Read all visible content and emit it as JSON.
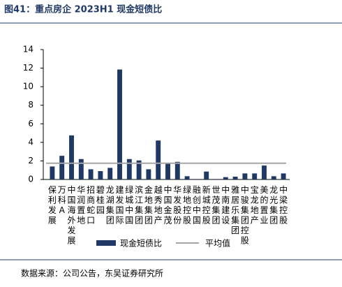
{
  "chart_data": {
    "type": "bar",
    "title": "图41：重点房企 2023H1 现金短债比",
    "source": "数据来源：公司公告，东吴证券研究所",
    "categories": [
      "保利发展",
      "万科A",
      "中国海外发展",
      "华润置地",
      "招商蛇口",
      "碧桂园",
      "龙湖集团",
      "建发国际",
      "绿城中国",
      "滨江集团",
      "金地集团",
      "越秀地产",
      "中国金茂",
      "华发股份",
      "绿地控股",
      "融创中国",
      "新城控股",
      "世茂集团",
      "中南建设",
      "雅居乐集团",
      "中骏集团控股",
      "宝龙地产",
      "美的置业",
      "龙光集团",
      "中梁控股"
    ],
    "series": [
      {
        "name": "现金短债比",
        "color": "#1f3864",
        "values": [
          1.4,
          2.55,
          4.75,
          2.2,
          1.1,
          0.9,
          1.25,
          11.85,
          2.2,
          2.05,
          1.1,
          4.2,
          1.75,
          1.9,
          0.35,
          0.05,
          0.85,
          0.05,
          0.25,
          0.3,
          0.65,
          0.65,
          1.5,
          0.35,
          0.65
        ]
      }
    ],
    "average": {
      "name": "平均值",
      "color": "#a6a6a6",
      "value": 1.75
    },
    "ylim": [
      0,
      14
    ],
    "yticks": [
      0,
      2,
      4,
      6,
      8,
      10,
      12,
      14
    ]
  }
}
